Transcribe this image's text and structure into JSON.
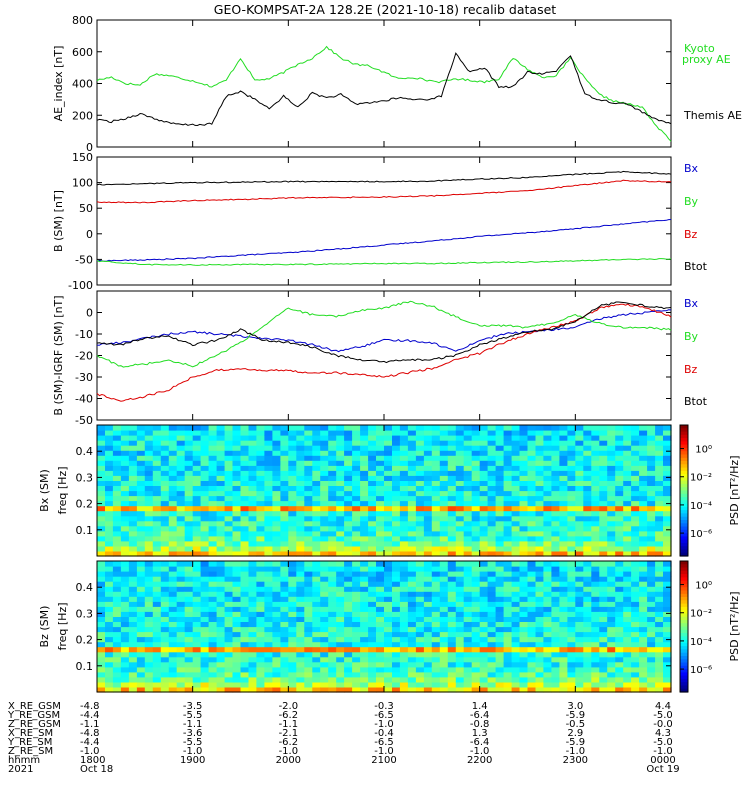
{
  "title": "GEO-KOMPSAT-2A 128.2E (2021-10-18) recalib dataset",
  "colors": {
    "black": "#000000",
    "green": "#22dd22",
    "blue": "#0000cc",
    "red": "#dd0000"
  },
  "chart_data": [
    {
      "type": "line",
      "ylabel": "AE_index [nT]",
      "ylim": [
        0,
        800
      ],
      "yticks": [
        0,
        200,
        400,
        600,
        800
      ],
      "x": [
        0,
        0.15,
        0.3,
        0.45,
        0.6,
        0.75,
        0.9,
        1.05,
        1.2,
        1.35,
        1.5,
        1.65,
        1.8,
        1.95,
        2.1,
        2.25,
        2.4,
        2.55,
        2.7,
        2.85,
        3.0,
        3.15,
        3.3,
        3.45,
        3.6,
        3.75,
        3.9,
        4.05,
        4.2,
        4.35,
        4.5,
        4.65,
        4.8,
        4.95,
        5.1,
        5.25,
        5.4,
        5.55,
        5.7,
        5.85,
        6.0
      ],
      "series": [
        {
          "name": "Kyoto proxy AE",
          "color": "green",
          "values": [
            420,
            440,
            400,
            390,
            460,
            450,
            430,
            410,
            380,
            420,
            560,
            420,
            430,
            470,
            520,
            560,
            630,
            560,
            520,
            510,
            470,
            430,
            440,
            420,
            410,
            430,
            420,
            410,
            430,
            560,
            490,
            440,
            450,
            560,
            430,
            330,
            290,
            270,
            250,
            130,
            40
          ]
        },
        {
          "name": "Themis AE",
          "color": "black",
          "values": [
            170,
            160,
            180,
            210,
            180,
            150,
            140,
            140,
            145,
            320,
            350,
            300,
            240,
            320,
            250,
            340,
            310,
            330,
            270,
            280,
            290,
            310,
            300,
            300,
            320,
            590,
            470,
            500,
            380,
            380,
            470,
            460,
            480,
            580,
            330,
            300,
            280,
            270,
            220,
            170,
            150
          ]
        }
      ]
    },
    {
      "type": "line",
      "ylabel": "B (SM) [nT]",
      "ylim": [
        -100,
        150
      ],
      "yticks": [
        -100,
        -50,
        0,
        50,
        100,
        150
      ],
      "x": [
        0,
        0.5,
        1,
        1.5,
        2,
        2.5,
        3,
        3.5,
        4,
        4.5,
        5,
        5.5,
        6
      ],
      "series": [
        {
          "name": "Bx",
          "color": "blue",
          "values": [
            -53,
            -51,
            -48,
            -42,
            -37,
            -30,
            -22,
            -14,
            -5,
            2,
            10,
            19,
            28
          ]
        },
        {
          "name": "By",
          "color": "green",
          "values": [
            -53,
            -60,
            -61,
            -60,
            -60,
            -59,
            -58,
            -58,
            -56,
            -55,
            -53,
            -50,
            -49
          ]
        },
        {
          "name": "Bz",
          "color": "red",
          "values": [
            62,
            61,
            65,
            67,
            70,
            71,
            72,
            74,
            79,
            84,
            94,
            104,
            101
          ]
        },
        {
          "name": "Btot",
          "color": "black",
          "values": [
            96,
            98,
            100,
            101,
            102,
            102,
            102,
            103,
            107,
            110,
            116,
            121,
            117
          ]
        }
      ]
    },
    {
      "type": "line",
      "ylabel": "B (SM)-IGRF (SM) [nT]",
      "ylim": [
        -50,
        10
      ],
      "yticks": [
        -50,
        -40,
        -30,
        -20,
        -10,
        0
      ],
      "x": [
        0,
        0.25,
        0.5,
        0.75,
        1,
        1.25,
        1.5,
        1.75,
        2,
        2.25,
        2.5,
        2.75,
        3,
        3.25,
        3.5,
        3.75,
        4,
        4.25,
        4.5,
        4.75,
        5,
        5.25,
        5.5,
        5.75,
        6
      ],
      "series": [
        {
          "name": "Bx",
          "color": "blue",
          "values": [
            -15,
            -14,
            -12,
            -10,
            -9,
            -10,
            -11,
            -12,
            -13,
            -15,
            -18,
            -16,
            -13,
            -13,
            -14,
            -18,
            -13,
            -10,
            -9,
            -8,
            -7,
            -3,
            -1,
            0,
            1
          ]
        },
        {
          "name": "By",
          "color": "green",
          "values": [
            -20,
            -25,
            -24,
            -22,
            -25,
            -20,
            -14,
            -6,
            2,
            -1,
            -2,
            1,
            2,
            5,
            3,
            -2,
            -6,
            -6,
            -7,
            -5,
            -1,
            -5,
            -7,
            -7,
            -8
          ]
        },
        {
          "name": "Bz",
          "color": "red",
          "values": [
            -38,
            -41,
            -39,
            -36,
            -30,
            -27,
            -26,
            -27,
            -27,
            -28,
            -28,
            -29,
            -30,
            -28,
            -26,
            -22,
            -19,
            -14,
            -10,
            -7,
            -4,
            2,
            4,
            2,
            -2
          ]
        },
        {
          "name": "Btot",
          "color": "black",
          "values": [
            -14,
            -15,
            -12,
            -11,
            -15,
            -13,
            -8,
            -13,
            -14,
            -16,
            -20,
            -22,
            -23,
            -22,
            -22,
            -20,
            -15,
            -12,
            -9,
            -8,
            -4,
            3,
            5,
            3,
            2
          ]
        }
      ]
    },
    {
      "type": "heatmap",
      "ylabel": "Bx (SM) freq [Hz]",
      "ylim": [
        0,
        0.5
      ],
      "yticks": [
        0.1,
        0.2,
        0.3,
        0.4
      ],
      "colorbar_label": "PSD [nT²/Hz]",
      "colorbar_ticks": [
        "10⁰",
        "10⁻²",
        "10⁻⁴",
        "10⁻⁶"
      ],
      "line_freq": 0.175
    },
    {
      "type": "heatmap",
      "ylabel": "Bz (SM) freq [Hz]",
      "ylim": [
        0,
        0.5
      ],
      "yticks": [
        0.1,
        0.2,
        0.3,
        0.4
      ],
      "colorbar_label": "PSD [nT²/Hz]",
      "colorbar_ticks": [
        "10⁰",
        "10⁻²",
        "10⁻⁴",
        "10⁻⁶"
      ],
      "line_freq": 0.17
    }
  ],
  "ephemeris": {
    "row_labels": [
      "X_RE_GSM",
      "Y_RE_GSM",
      "Z_RE_GSM",
      "X_RE_SM",
      "Y_RE_SM",
      "Z_RE_SM",
      "hhmm",
      "2021"
    ],
    "columns": [
      [
        "-4.8",
        "-4.4",
        "-1.1",
        "-4.8",
        "-4.4",
        "-1.0",
        "1800",
        "Oct 18"
      ],
      [
        "-3.5",
        "-5.5",
        "-1.1",
        "-3.6",
        "-5.5",
        "-1.0",
        "1900",
        ""
      ],
      [
        "-2.0",
        "-6.2",
        "-1.1",
        "-2.1",
        "-6.2",
        "-1.0",
        "2000",
        ""
      ],
      [
        "-0.3",
        "-6.5",
        "-1.0",
        "-0.4",
        "-6.5",
        "-1.0",
        "2100",
        ""
      ],
      [
        "1.4",
        "-6.4",
        "-0.8",
        "1.3",
        "-6.4",
        "-1.0",
        "2200",
        ""
      ],
      [
        "3.0",
        "-5.9",
        "-0.5",
        "2.9",
        "-5.9",
        "-1.0",
        "2300",
        ""
      ],
      [
        "4.4",
        "-5.0",
        "-0.0",
        "4.3",
        "-5.0",
        "-1.0",
        "0000",
        "Oct 19"
      ]
    ]
  }
}
